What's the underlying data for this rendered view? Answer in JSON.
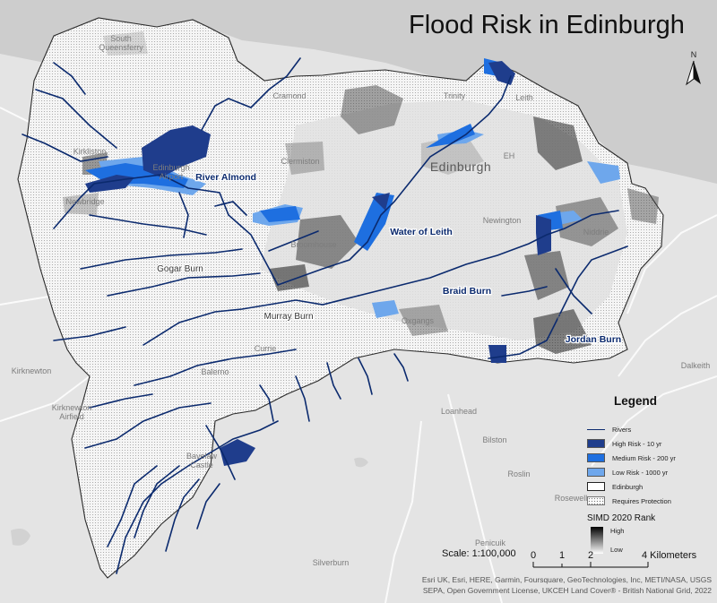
{
  "title": "Flood Risk in Edinburgh",
  "north_arrow": {
    "label": "N"
  },
  "colors": {
    "water": "#cdcdcd",
    "land": "#e4e4e4",
    "boundary_fill": "#f4f4f4",
    "river": "#0b2a6e",
    "high_risk": "#1f3d8c",
    "medium_risk": "#1e6fe0",
    "low_risk": "#6ea7ec"
  },
  "places": {
    "south_queensferry": "South Queensferry",
    "cramond": "Cramond",
    "trinity": "Trinity",
    "leith": "Leith",
    "kirkliston": "Kirkliston",
    "edinburgh_airport": "Edinburgh Airport",
    "clermiston": "Clermiston",
    "edinburgh": "Edinburgh",
    "newbridge": "Newbridge",
    "newington": "Newington",
    "broomhouse": "Broomhouse",
    "oxgangs": "Oxgangs",
    "currie": "Currie",
    "balerno": "Balerno",
    "kirknewton": "Kirknewton",
    "kirknewton_airfield": "Kirknewton Airfield",
    "bavelaw_castle": "Bavelaw Castle",
    "loanhead": "Loanhead",
    "bilston": "Bilston",
    "roslin": "Roslin",
    "rosewell": "Rosewell",
    "penicuik": "Penicuik",
    "silverburn": "Silverburn",
    "dalkeith": "Dalkeith",
    "niddrie": "Niddrie",
    "craigmillar": "EH",
    "restalrig": "EH"
  },
  "river_labels": {
    "almond": "River Almond",
    "leith": "Water of Leith",
    "braid": "Braid Burn",
    "jordan": "Jordan Burn",
    "gogar": "Gogar Burn",
    "murray": "Murray Burn"
  },
  "legend": {
    "title": "Legend",
    "items": [
      {
        "label": "Rivers",
        "symbol": "line"
      },
      {
        "label": "High Risk - 10 yr",
        "symbol": "fill",
        "color": "#1f3d8c"
      },
      {
        "label": "Medium Risk - 200 yr",
        "symbol": "fill",
        "color": "#1e6fe0"
      },
      {
        "label": "Low Risk - 1000 yr",
        "symbol": "fill",
        "color": "#6ea7ec"
      },
      {
        "label": "Edinburgh",
        "symbol": "outline"
      },
      {
        "label": "Requires Protection",
        "symbol": "dots"
      }
    ],
    "simd": {
      "title": "SIMD 2020 Rank",
      "high": "High",
      "low": "Low"
    }
  },
  "scale": {
    "text": "Scale: 1:100,000",
    "ticks": [
      "0",
      "1",
      "2",
      "4 Kilometers"
    ]
  },
  "credits": {
    "line1": "Esri UK, Esri, HERE, Garmin, Foursquare, GeoTechnologies, Inc, METI/NASA, USGS",
    "line2": "SEPA, Open Government License, UKCEH Land Cover® - British National Grid, 2022"
  }
}
